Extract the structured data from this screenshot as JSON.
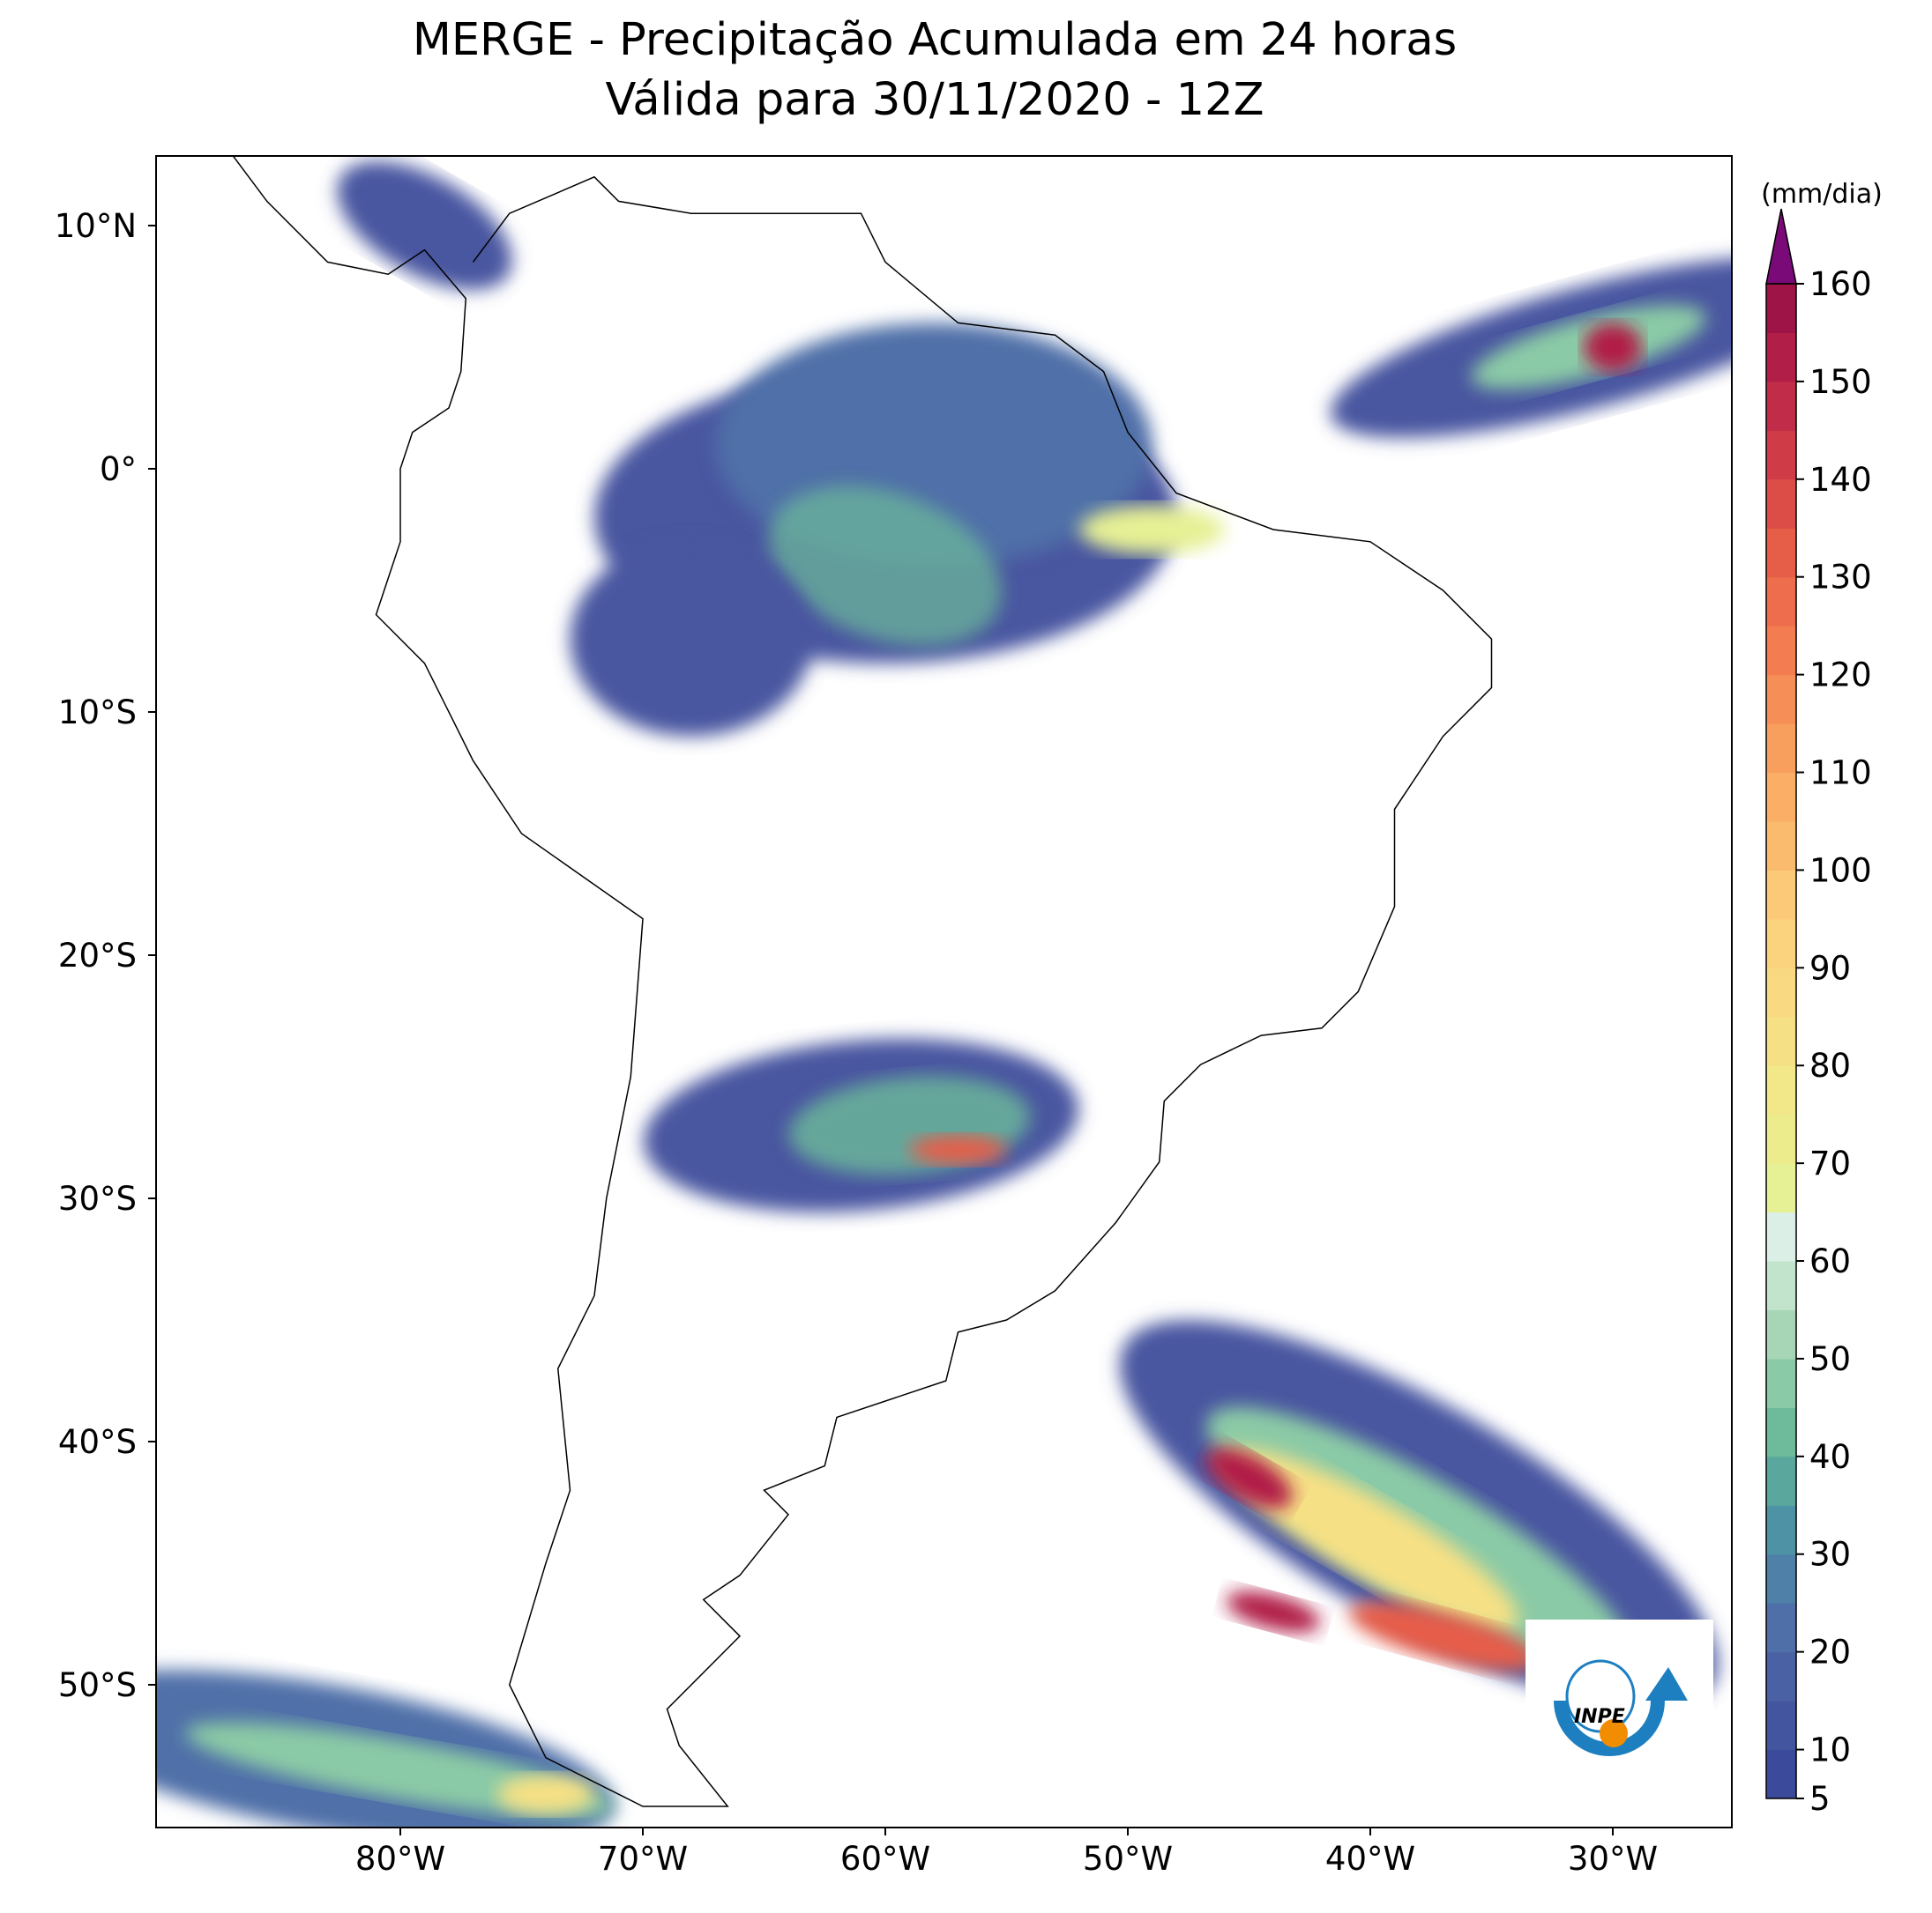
{
  "title": [
    "MERGE - Precipitação Acumulada em 24 horas",
    "Válida para 30/11/2020 - 12Z"
  ],
  "map": {
    "lat_ticks": [
      {
        "value": 10,
        "label": "10°N"
      },
      {
        "value": 0,
        "label": "0°"
      },
      {
        "value": -10,
        "label": "10°S"
      },
      {
        "value": -20,
        "label": "20°S"
      },
      {
        "value": -30,
        "label": "30°S"
      },
      {
        "value": -40,
        "label": "40°S"
      },
      {
        "value": -50,
        "label": "50°S"
      }
    ],
    "lon_ticks": [
      {
        "value": -80,
        "label": "80°W"
      },
      {
        "value": -70,
        "label": "70°W"
      },
      {
        "value": -60,
        "label": "60°W"
      },
      {
        "value": -50,
        "label": "50°W"
      },
      {
        "value": -40,
        "label": "40°W"
      },
      {
        "value": -30,
        "label": "30°W"
      }
    ]
  },
  "colorbar": {
    "label": "(mm/dia)",
    "levels": [
      5,
      10,
      15,
      20,
      25,
      30,
      35,
      40,
      45,
      50,
      55,
      60,
      65,
      70,
      75,
      80,
      85,
      90,
      95,
      100,
      105,
      110,
      115,
      120,
      125,
      130,
      135,
      140,
      145,
      150,
      155,
      160
    ],
    "ticks": [
      5,
      10,
      20,
      30,
      40,
      50,
      60,
      70,
      80,
      90,
      100,
      110,
      120,
      130,
      140,
      150,
      160
    ],
    "colors": [
      "#3b4a9b",
      "#43559f",
      "#4a62a4",
      "#4f6fa8",
      "#4e80a8",
      "#4d93a5",
      "#5aa89d",
      "#6dbb9a",
      "#8bcaa6",
      "#a6d6b5",
      "#c2e3cc",
      "#dcefe6",
      "#e6f094",
      "#ecec8d",
      "#f2e88a",
      "#f6e085",
      "#f9d981",
      "#fbd27e",
      "#fcc978",
      "#fbbb6e",
      "#faae66",
      "#f89f5e",
      "#f68f57",
      "#f37d51",
      "#ee6d4c",
      "#e65d48",
      "#dc4d47",
      "#cf3c48",
      "#c12c48",
      "#b11e47",
      "#9e1447"
    ],
    "extend_color": "#7a0a78"
  },
  "logo": "INPE"
}
